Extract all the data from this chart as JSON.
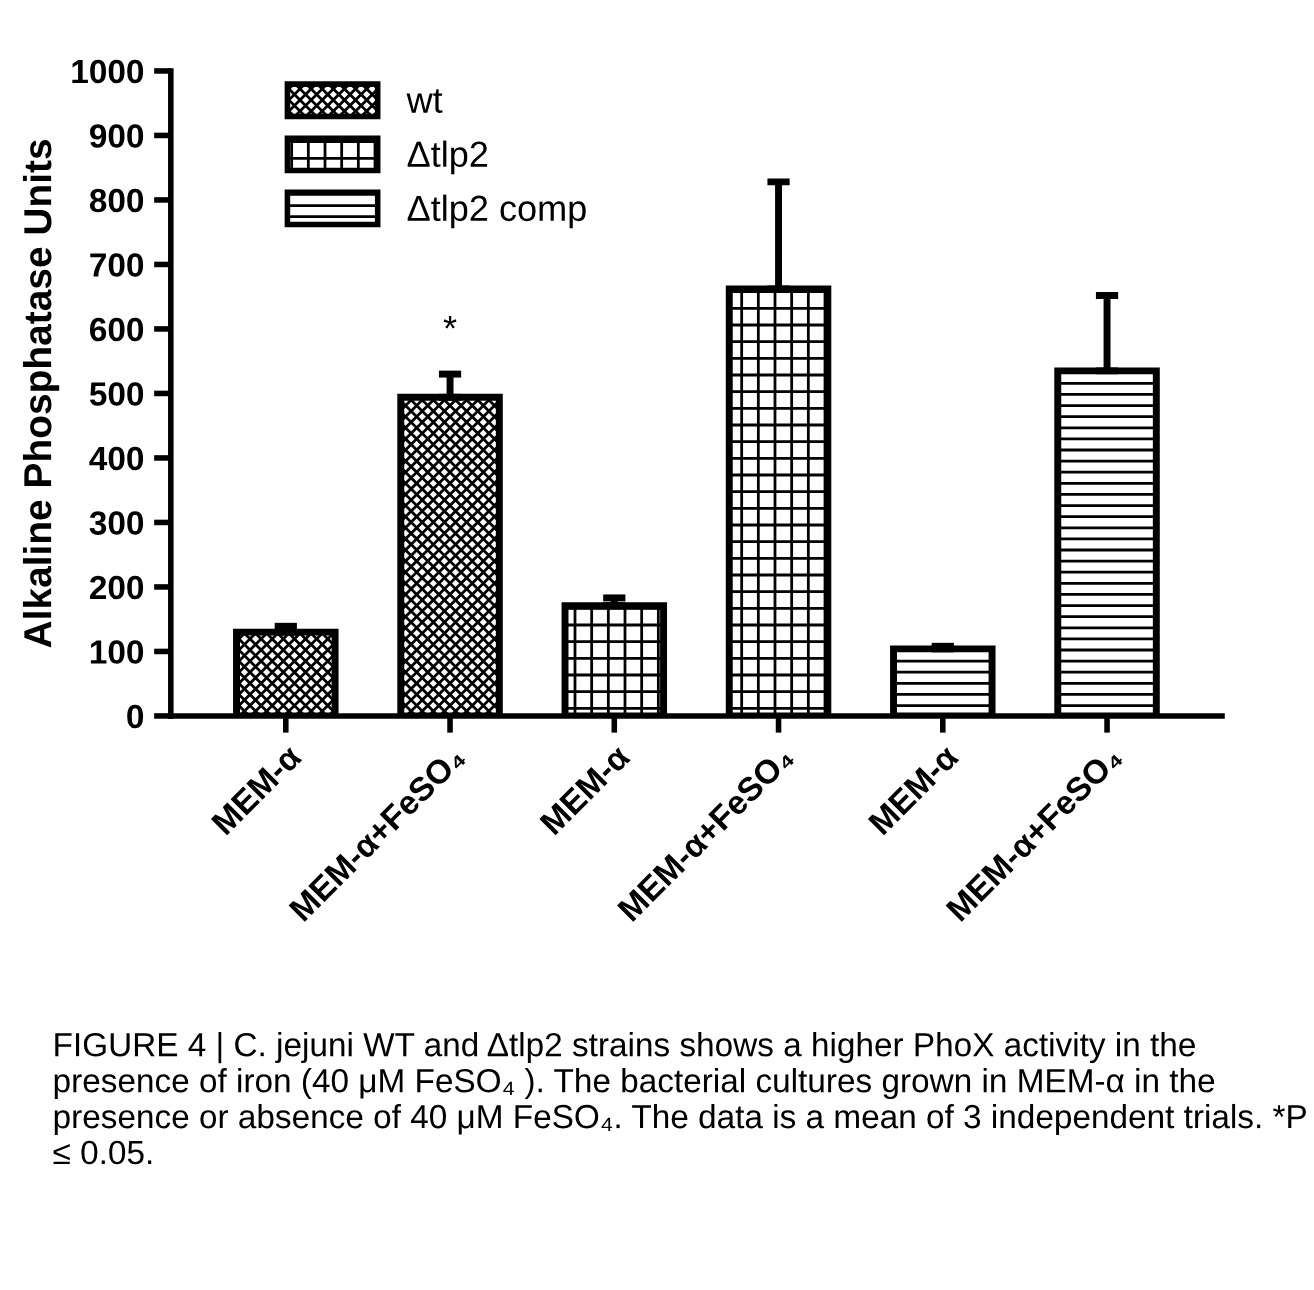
{
  "chart_data": {
    "type": "bar",
    "ylabel": "Alkaline Phosphatase Units",
    "categories": [
      "MEM-α",
      "MEM-α+FeSO₄",
      "MEM-α",
      "MEM-α+FeSO₄",
      "MEM-α",
      "MEM-α+FeSO₄"
    ],
    "series": [
      {
        "name": "wt",
        "color": "#000000",
        "values": [
          130,
          494,
          null,
          null,
          null,
          null
        ],
        "errors": [
          [
            130,
            139
          ],
          [
            494,
            530
          ],
          null,
          null,
          null,
          null
        ]
      },
      {
        "name": "Δtlp2",
        "color": "#000000",
        "values": [
          null,
          null,
          171,
          662,
          null,
          null
        ],
        "errors": [
          null,
          null,
          [
            171,
            183
          ],
          [
            662,
            828
          ],
          null,
          null
        ]
      },
      {
        "name": "Δtlp2 comp",
        "color": "#000000",
        "values": [
          null,
          null,
          null,
          null,
          104,
          535
        ],
        "errors": [
          null,
          null,
          null,
          null,
          [
            104,
            108
          ],
          [
            535,
            652
          ]
        ]
      }
    ],
    "ylim": [
      0,
      1000
    ],
    "yticks": [
      0,
      100,
      200,
      300,
      400,
      500,
      600,
      700,
      800,
      900,
      1000
    ],
    "grid": false,
    "legend": "top left",
    "annotations": [
      "*",
      "FIGURE 4 | C. jejuni WT and Δtlp2 strains shows a higher PhoX activity in the presence of iron (40 μM FeSO₄ ). The bacterial cultures grown in MEM-α in the presence or absence of 40 μM FeSO₄. The data is a mean of 3 independent trials. *P ≤ 0.05."
    ]
  }
}
